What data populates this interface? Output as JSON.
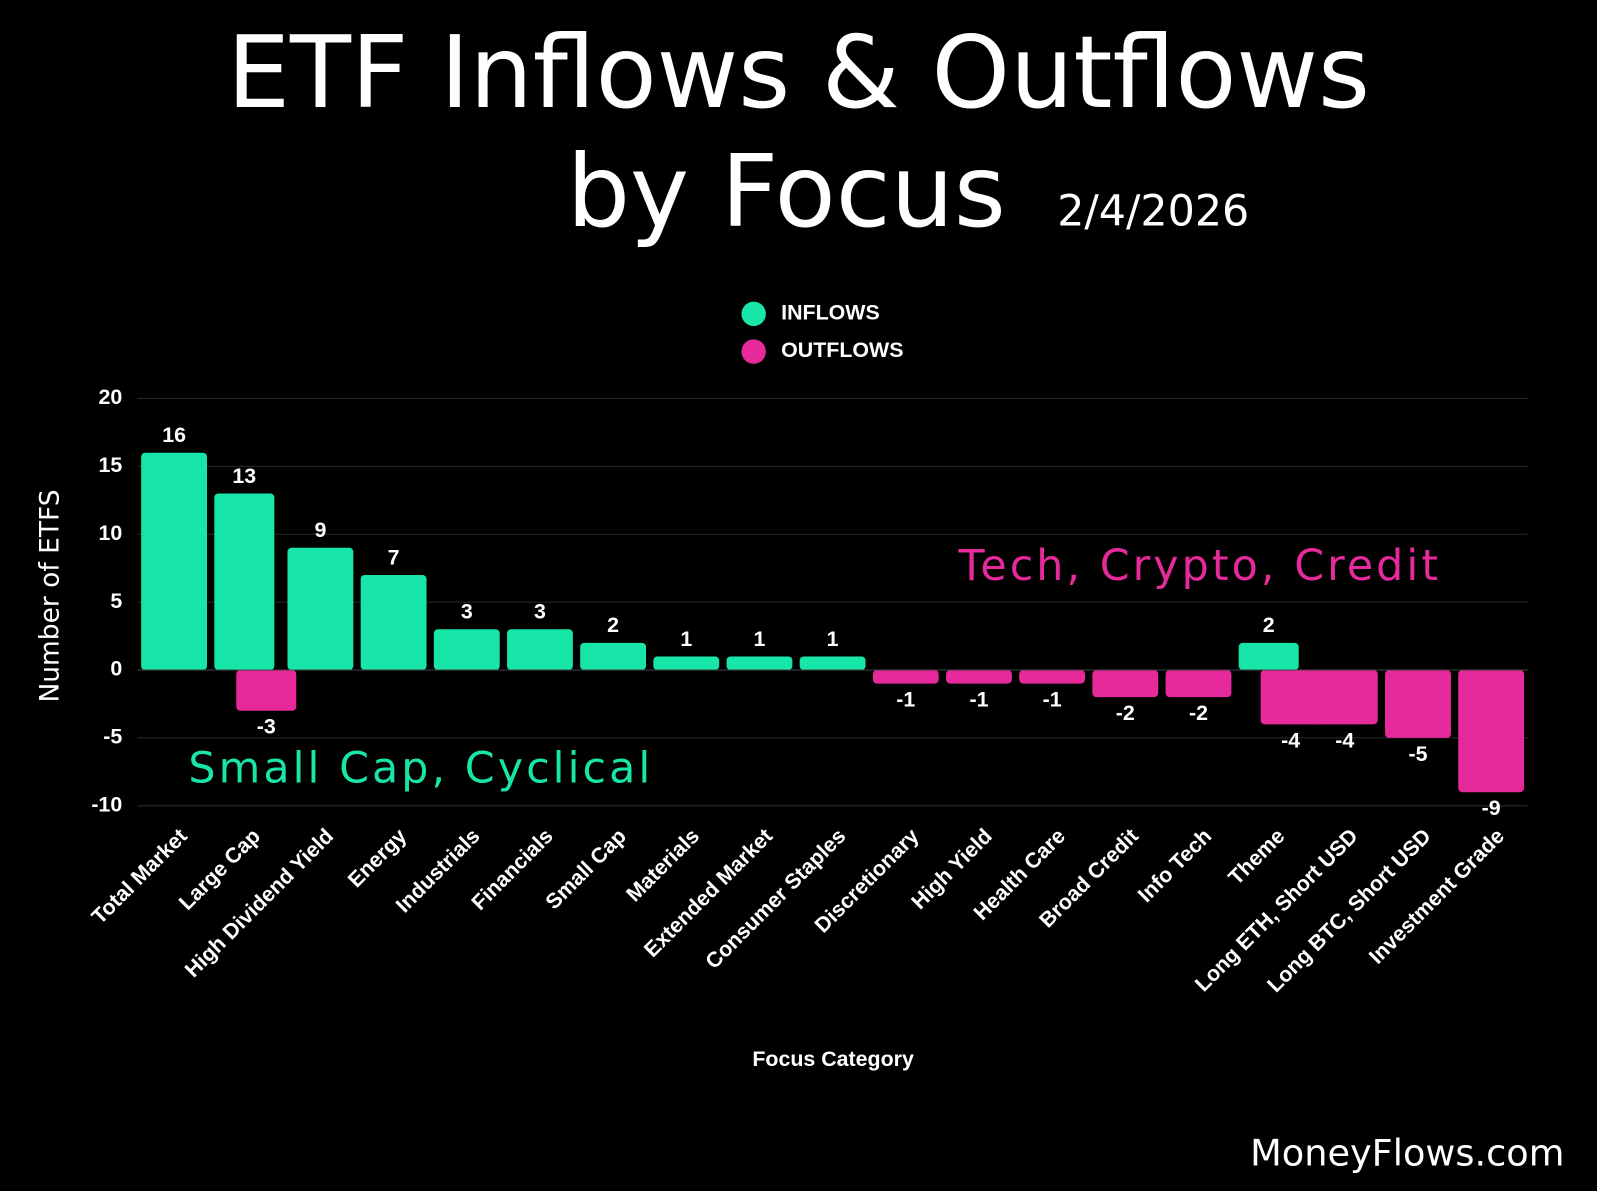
{
  "chart_data": {
    "type": "bar",
    "title": [
      "ETF Inflows & Outflows",
      "by Focus"
    ],
    "subtitle": "2/4/2026",
    "x_label": "Focus Category",
    "y_label": "Number of ETFS",
    "categories": [
      "Total Market",
      "Large Cap",
      "High Dividend Yield",
      "Energy",
      "Industrials",
      "Financials",
      "Small Cap",
      "Materials",
      "Extended Market",
      "Consumer Staples",
      "Discretionary",
      "High Yield",
      "Health Care",
      "Broad Credit",
      "Info Tech",
      "Theme",
      "Long ETH, Short USD",
      "Long BTC, Short USD",
      "Investment Grade"
    ],
    "series": [
      {
        "name": "INFLOWS",
        "color": "#17e6a8",
        "values": [
          16,
          13,
          9,
          7,
          3,
          3,
          2,
          1,
          1,
          1,
          null,
          null,
          null,
          null,
          null,
          2,
          null,
          null,
          null
        ]
      },
      {
        "name": "OUTFLOWS",
        "color": "#e6299b",
        "values": [
          null,
          -3,
          null,
          null,
          null,
          null,
          null,
          null,
          null,
          null,
          -1,
          -1,
          -1,
          -2,
          -2,
          -4,
          -4,
          -5,
          -9
        ]
      }
    ],
    "ylim": [
      -10,
      20
    ],
    "yticks": [
      -10,
      -5,
      0,
      5,
      10,
      15,
      20
    ],
    "grid": true,
    "legend": "top",
    "annotations": [
      {
        "text": "Small Cap, Cyclical",
        "color": "#17e6a8"
      },
      {
        "text": "Tech, Crypto, Credit",
        "color": "#e6299b"
      }
    ],
    "watermark": "MoneyFlows.com"
  }
}
